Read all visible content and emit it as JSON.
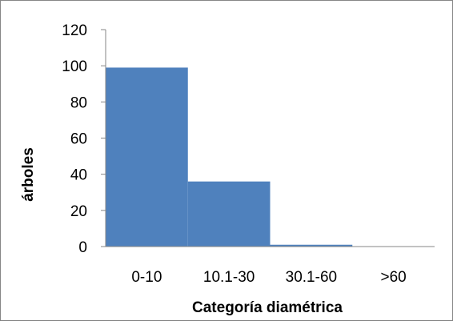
{
  "chart_data": {
    "type": "bar",
    "categories": [
      "0-10",
      "10.1-30",
      "30.1-60",
      ">60"
    ],
    "values": [
      99,
      36,
      1,
      0
    ],
    "title": "",
    "xlabel": "Categoría diamétrica",
    "ylabel": "árboles",
    "ylim": [
      0,
      120
    ],
    "yticks": [
      "0",
      "20",
      "40",
      "60",
      "80",
      "100",
      "120"
    ],
    "grid": false,
    "legend": "none",
    "bar_color": "#4F81BD",
    "axis_color": "#868686"
  }
}
